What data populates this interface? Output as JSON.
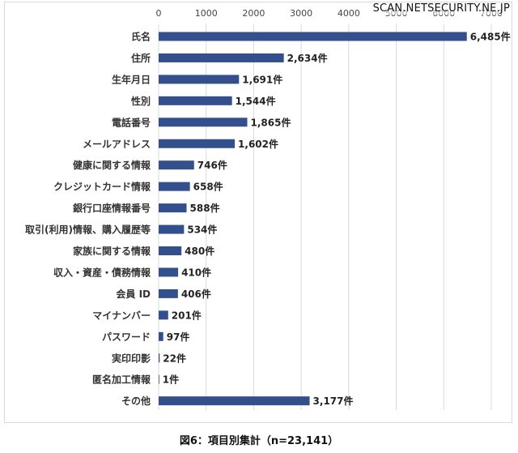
{
  "watermark": "SCAN.NETSECURITY.NE.JP",
  "caption": "図6：項目別集計（n=23,141）",
  "chart_data": {
    "type": "bar",
    "orientation": "horizontal",
    "title": "",
    "xlabel": "",
    "ylabel": "",
    "xlim": [
      0,
      7000
    ],
    "ticks": [
      0,
      1000,
      2000,
      3000,
      4000,
      5000,
      6000,
      7000
    ],
    "tick_labels": [
      "0",
      "1000",
      "2000",
      "3000",
      "4000",
      "5000",
      "6000",
      "7000"
    ],
    "axis_position": "top",
    "grid": true,
    "bar_color": "#34508c",
    "categories": [
      "氏名",
      "住所",
      "生年月日",
      "性別",
      "電話番号",
      "メールアドレス",
      "健康に関する情報",
      "クレジットカード情報",
      "銀行口座情報番号",
      "取引(利用)情報、購入履歴等",
      "家族に関する情報",
      "収入・資産・債務情報",
      "会員 ID",
      "マイナンバー",
      "パスワード",
      "実印印影",
      "匿名加工情報",
      "その他"
    ],
    "values": [
      6485,
      2634,
      1691,
      1544,
      1865,
      1602,
      746,
      658,
      588,
      534,
      480,
      410,
      406,
      201,
      97,
      22,
      1,
      3177
    ],
    "value_labels": [
      "6,485件",
      "2,634件",
      "1,691件",
      "1,544件",
      "1,865件",
      "1,602件",
      "746件",
      "658件",
      "588件",
      "534件",
      "480件",
      "410件",
      "406件",
      "201件",
      "97件",
      "22件",
      "1件",
      "3,177件"
    ]
  }
}
